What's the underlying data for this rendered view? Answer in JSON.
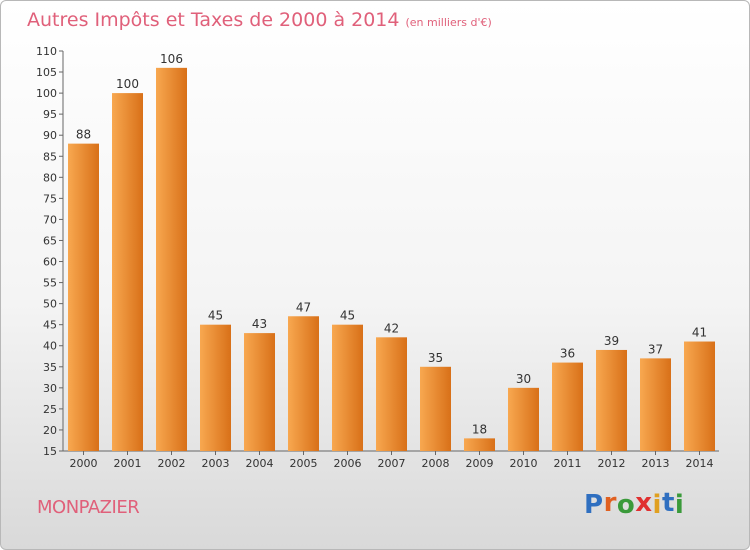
{
  "title": "Autres Impôts et Taxes de 2000 à 2014",
  "subtitle": "(en milliers d'€)",
  "place": "MONPAZIER",
  "logo": {
    "text": "Proxiti",
    "colors": [
      "#2f6fc0",
      "#e06020",
      "#3a9a3a",
      "#e03030",
      "#e0a020",
      "#2f6fc0",
      "#3a9a3a"
    ]
  },
  "colors": {
    "bar_light": "#f8a850",
    "bar_dark": "#d87018",
    "accent": "#e0607a"
  },
  "chart_data": {
    "type": "bar",
    "title": "Autres Impôts et Taxes de 2000 à 2014",
    "categories": [
      "2000",
      "2001",
      "2002",
      "2003",
      "2004",
      "2005",
      "2006",
      "2007",
      "2008",
      "2009",
      "2010",
      "2011",
      "2012",
      "2013",
      "2014"
    ],
    "values": [
      88,
      100,
      106,
      45,
      43,
      47,
      45,
      42,
      35,
      18,
      30,
      36,
      39,
      37,
      41
    ],
    "ylim": [
      15,
      110
    ],
    "yticks": [
      15,
      20,
      25,
      30,
      35,
      40,
      45,
      50,
      55,
      60,
      65,
      70,
      75,
      80,
      85,
      90,
      95,
      100,
      105,
      110
    ],
    "grid": false,
    "legend": "none"
  }
}
